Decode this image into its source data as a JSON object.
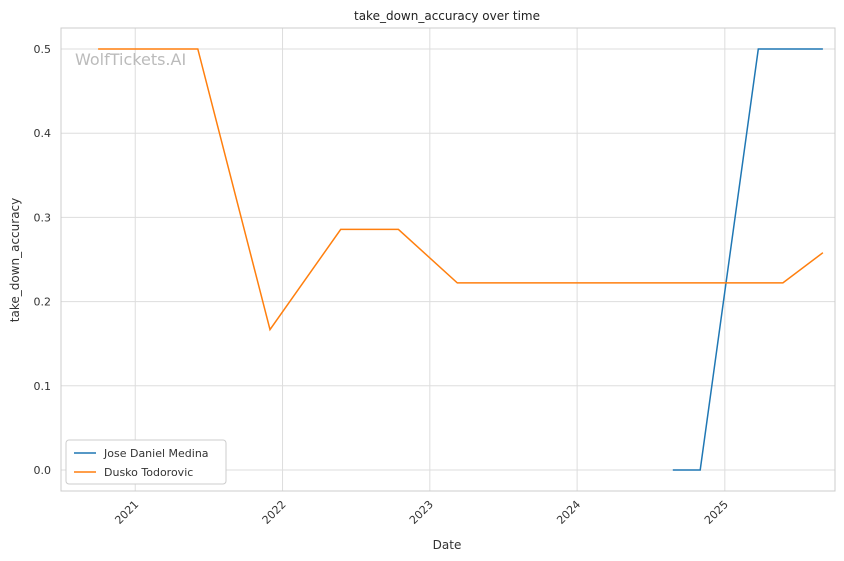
{
  "chart_data": {
    "type": "line",
    "title": "take_down_accuracy over time",
    "xlabel": "Date",
    "ylabel": "take_down_accuracy",
    "watermark": "WolfTickets.AI",
    "x_ticks": [
      "2021",
      "2022",
      "2023",
      "2024",
      "2025"
    ],
    "y_ticks": [
      "0.0",
      "0.1",
      "0.2",
      "0.3",
      "0.4",
      "0.5"
    ],
    "xlim": [
      "2020-07-01",
      "2025-10-01"
    ],
    "ylim": [
      -0.025,
      0.525
    ],
    "grid": true,
    "legend_position": "lower-left",
    "series": [
      {
        "name": "Jose Daniel Medina",
        "color": "#1f77b4",
        "points": [
          {
            "x": "2024-08-25",
            "y": 0.0
          },
          {
            "x": "2024-11-01",
            "y": 0.0
          },
          {
            "x": "2025-03-25",
            "y": 0.5
          },
          {
            "x": "2025-09-01",
            "y": 0.5
          }
        ]
      },
      {
        "name": "Dusko Todorovic",
        "color": "#ff7f0e",
        "points": [
          {
            "x": "2020-10-01",
            "y": 0.5
          },
          {
            "x": "2021-06-05",
            "y": 0.5
          },
          {
            "x": "2021-12-01",
            "y": 0.1667
          },
          {
            "x": "2022-05-25",
            "y": 0.2857
          },
          {
            "x": "2022-10-15",
            "y": 0.2857
          },
          {
            "x": "2023-03-10",
            "y": 0.2222
          },
          {
            "x": "2025-05-25",
            "y": 0.2222
          },
          {
            "x": "2025-09-01",
            "y": 0.2581
          }
        ]
      }
    ]
  }
}
